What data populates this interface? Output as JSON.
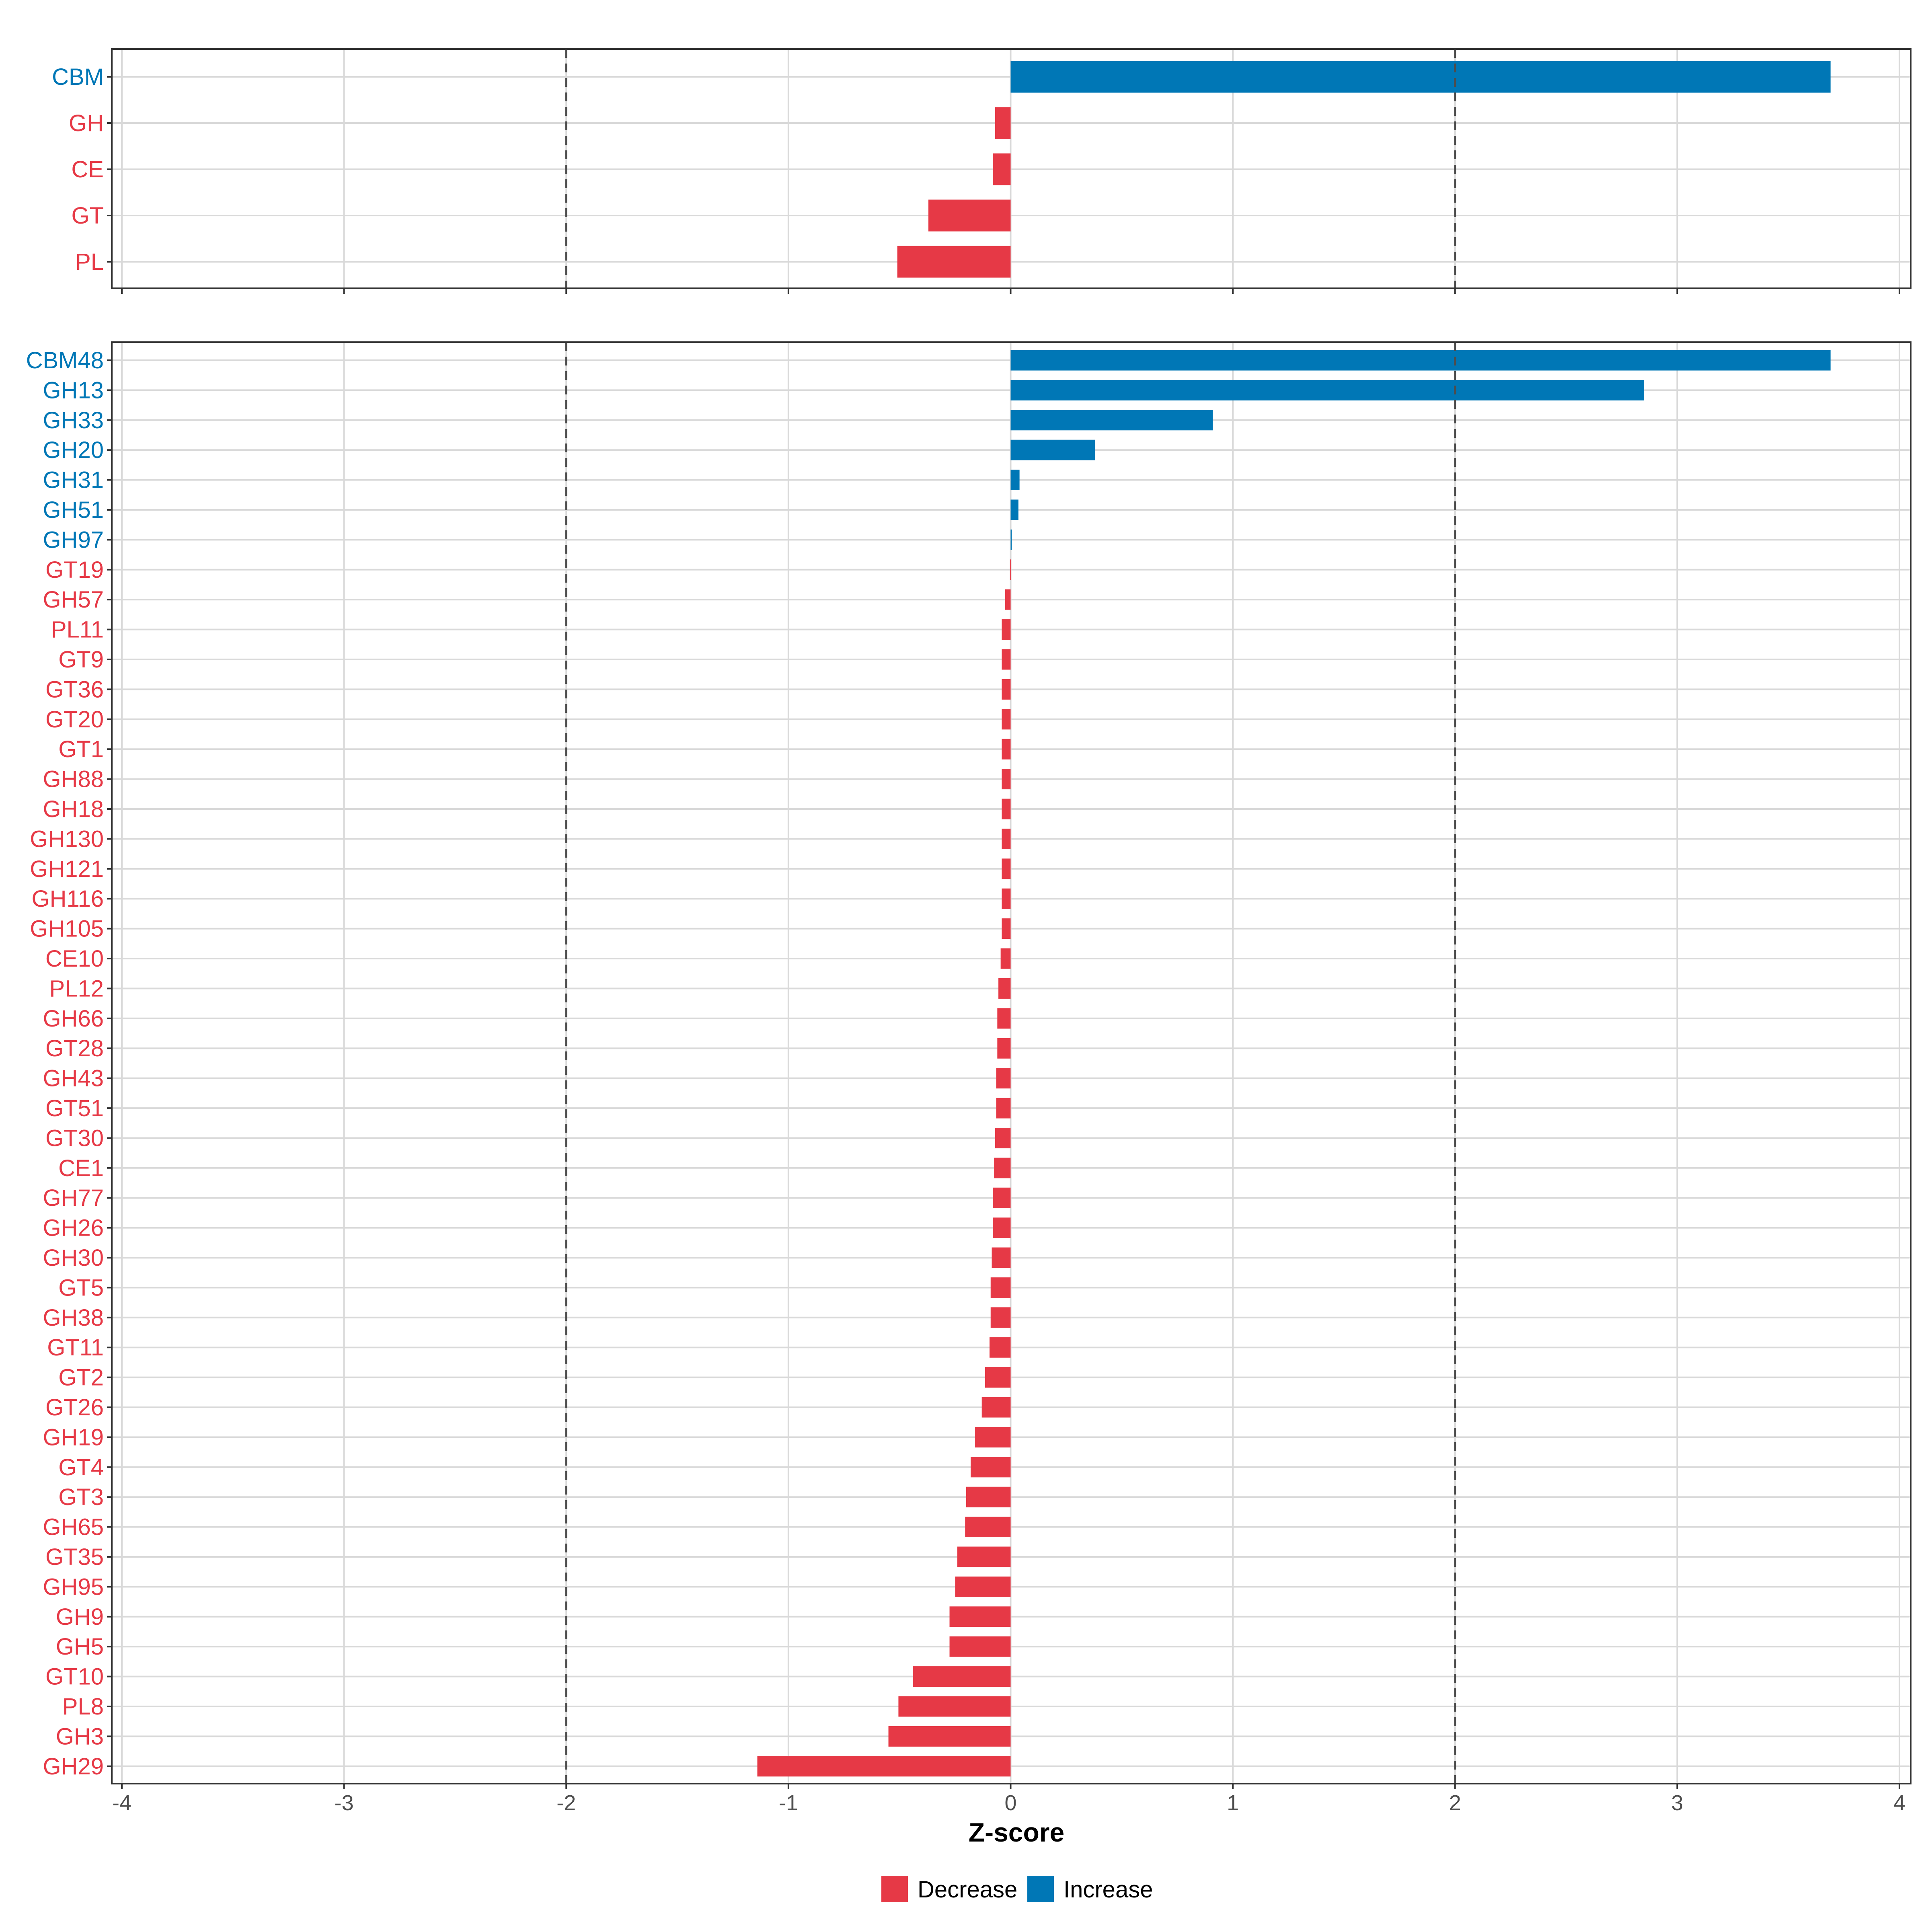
{
  "colors": {
    "decrease": "#e63946",
    "increase": "#0077b6"
  },
  "chart_data": {
    "type": "bar",
    "orientation": "horizontal",
    "xlabel": "Z-score",
    "xlim": [
      -4,
      4
    ],
    "xticks": [
      -4,
      -3,
      -2,
      -1,
      0,
      1,
      2,
      3,
      4
    ],
    "xtick_labels": [
      "-4",
      "-3",
      "-2",
      "-1",
      "0",
      "1",
      "2",
      "3",
      "4"
    ],
    "reference_lines": [
      -2,
      2
    ],
    "legend": {
      "position": "bottom",
      "entries": [
        {
          "label": "Decrease",
          "key": "decrease"
        },
        {
          "label": "Increase",
          "key": "increase"
        }
      ]
    },
    "panels": [
      {
        "name": "class",
        "categories": [
          "CBM",
          "GH",
          "CE",
          "GT",
          "PL"
        ],
        "values": [
          3.69,
          -0.07,
          -0.08,
          -0.37,
          -0.51
        ]
      },
      {
        "name": "family",
        "categories": [
          "CBM48",
          "GH13",
          "GH33",
          "GH20",
          "GH31",
          "GH51",
          "GH97",
          "GT19",
          "GH57",
          "PL11",
          "GT9",
          "GT36",
          "GT20",
          "GT1",
          "GH88",
          "GH18",
          "GH130",
          "GH121",
          "GH116",
          "GH105",
          "CE10",
          "PL12",
          "GH66",
          "GT28",
          "GH43",
          "GT51",
          "GT30",
          "CE1",
          "GH77",
          "GH26",
          "GH30",
          "GT5",
          "GH38",
          "GT11",
          "GT2",
          "GT26",
          "GH19",
          "GT4",
          "GT3",
          "GH65",
          "GT35",
          "GH95",
          "GH9",
          "GH5",
          "GT10",
          "PL8",
          "GH3",
          "GH29"
        ],
        "values": [
          3.69,
          2.85,
          0.91,
          0.38,
          0.04,
          0.035,
          0.005,
          -0.003,
          -0.025,
          -0.04,
          -0.04,
          -0.04,
          -0.04,
          -0.04,
          -0.04,
          -0.04,
          -0.04,
          -0.04,
          -0.04,
          -0.04,
          -0.045,
          -0.055,
          -0.06,
          -0.06,
          -0.065,
          -0.065,
          -0.07,
          -0.075,
          -0.08,
          -0.08,
          -0.085,
          -0.09,
          -0.09,
          -0.095,
          -0.115,
          -0.13,
          -0.16,
          -0.18,
          -0.2,
          -0.205,
          -0.24,
          -0.25,
          -0.275,
          -0.275,
          -0.44,
          -0.505,
          -0.55,
          -1.14
        ]
      }
    ]
  }
}
